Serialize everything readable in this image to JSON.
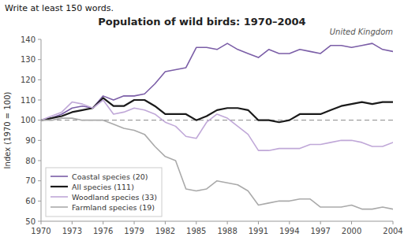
{
  "chart_data": {
    "type": "line",
    "title": "Population of wild birds: 1970–2004",
    "subtitle": "Write at least 150 words.",
    "annotation": "United Kingdom",
    "ylabel": "Index (1970 = 100)",
    "x": [
      1970,
      1971,
      1972,
      1973,
      1974,
      1975,
      1976,
      1977,
      1978,
      1979,
      1980,
      1981,
      1982,
      1983,
      1984,
      1985,
      1986,
      1987,
      1988,
      1989,
      1990,
      1991,
      1992,
      1993,
      1994,
      1995,
      1996,
      1997,
      1998,
      1999,
      2000,
      2001,
      2002,
      2003,
      2004
    ],
    "xlim": [
      1970,
      2004
    ],
    "xticks": [
      1970,
      1973,
      1976,
      1979,
      1982,
      1985,
      1988,
      1991,
      1994,
      1997,
      2000,
      2004
    ],
    "ylim": [
      50,
      140
    ],
    "yticks": [
      50,
      60,
      70,
      80,
      90,
      100,
      110,
      120,
      130,
      140
    ],
    "reference_line": 100,
    "grid": false,
    "legend": "lower left",
    "series": [
      {
        "name": "Coastal species (20)",
        "color": "#7b5ea7",
        "values": [
          100,
          101,
          103,
          106,
          107,
          106,
          112,
          110,
          112,
          112,
          113,
          118,
          124,
          125,
          126,
          136,
          136,
          135,
          138,
          135,
          133,
          131,
          135,
          133,
          133,
          135,
          134,
          133,
          137,
          137,
          136,
          137,
          138,
          135,
          134
        ]
      },
      {
        "name": "All species (111)",
        "color": "#1a1a1a",
        "values": [
          100,
          101,
          102,
          104,
          105,
          106,
          111,
          107,
          107,
          110,
          110,
          107,
          103,
          103,
          103,
          100,
          102,
          105,
          106,
          106,
          105,
          100,
          100,
          99,
          100,
          103,
          103,
          103,
          105,
          107,
          108,
          109,
          108,
          109,
          109
        ]
      },
      {
        "name": "Woodland species (33)",
        "color": "#c0a8d8",
        "values": [
          100,
          102,
          104,
          109,
          108,
          106,
          110,
          103,
          104,
          106,
          105,
          103,
          99,
          97,
          92,
          91,
          99,
          103,
          101,
          97,
          93,
          85,
          85,
          86,
          86,
          86,
          88,
          88,
          89,
          90,
          90,
          89,
          87,
          87,
          89
        ]
      },
      {
        "name": "Farmland species (19)",
        "color": "#aaaaaa",
        "values": [
          100,
          100,
          101,
          101,
          100,
          100,
          100,
          98,
          96,
          95,
          93,
          87,
          82,
          80,
          66,
          65,
          66,
          70,
          69,
          68,
          65,
          58,
          59,
          60,
          60,
          61,
          61,
          57,
          57,
          57,
          58,
          56,
          56,
          57,
          56
        ]
      }
    ]
  }
}
